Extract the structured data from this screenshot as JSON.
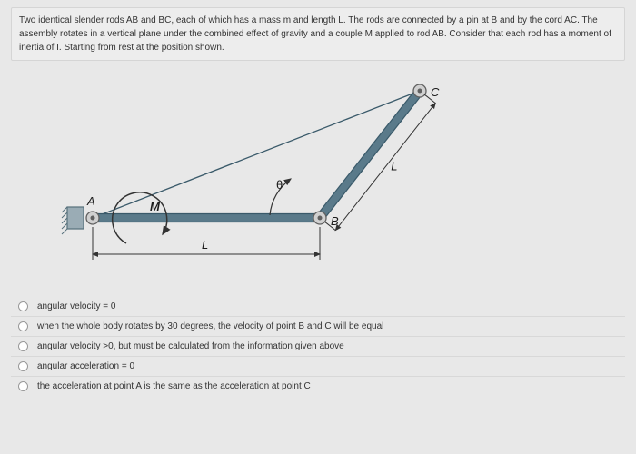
{
  "question": {
    "text": "Two identical slender rods AB and BC, each of which has a mass m and length L. The rods are connected by a pin at B and by the cord AC. The assembly rotates in a vertical plane under the combined effect of gravity and a couple M applied to rod AB. Consider that each rod has a moment of inertia of I. Starting from rest at the position shown."
  },
  "diagram": {
    "labels": {
      "A": "A",
      "B": "B",
      "C": "C",
      "M": "M",
      "L": "L",
      "theta": "θ"
    },
    "colors": {
      "rod_fill": "#5a7a8a",
      "rod_stroke": "#3a5a6a",
      "pin_fill": "#d0d0d0",
      "pin_stroke": "#606060",
      "label_color": "#1a1a1a",
      "support_fill": "#9aacb5",
      "support_stroke": "#56707c",
      "dim_color": "#333333",
      "arc_color": "#333333"
    },
    "geometry": {
      "A": [
        60,
        150
      ],
      "B": [
        310,
        150
      ],
      "C": [
        420,
        10
      ]
    }
  },
  "options": [
    {
      "text": "angular velocity = 0"
    },
    {
      "text": "when the whole body rotates by 30 degrees, the velocity of point B and C will be equal"
    },
    {
      "text": "angular velocity >0, but must be calculated from the information given above"
    },
    {
      "text": "angular acceleration = 0"
    },
    {
      "text": "the acceleration at point A is the same as the acceleration at point C"
    }
  ],
  "styles": {
    "background_color": "#e8e8e8",
    "text_color": "#333333",
    "border_color": "#d8d8d8",
    "font_size_question": 10,
    "font_size_option": 10
  }
}
